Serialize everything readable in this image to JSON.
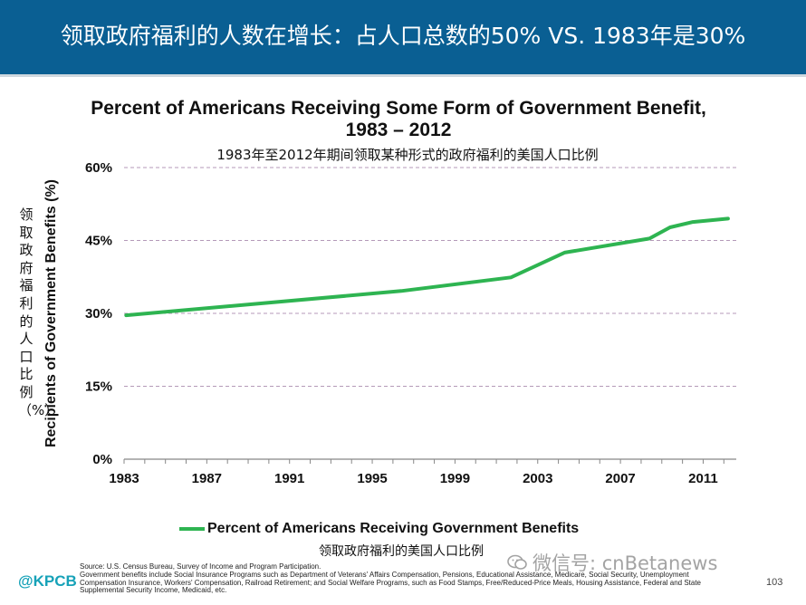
{
  "slide": {
    "title": "领取政府福利的人数在增长：占人口总数的50% VS. 1983年是30%",
    "brand": "@KPCB",
    "page_number": "103",
    "watermark": "微信号: cnBetanews",
    "source_lines": [
      "Source: U.S. Census Bureau, Survey of Income and Program Participation.",
      "Government benefits include Social Insurance Programs such as Department of Veterans' Affairs Compensation, Pensions, Educational Assistance, Medicare, Social Security, Unemployment",
      "Compensation Insurance, Workers' Compensation, Railroad Retirement; and Social Welfare Programs, such as Food Stamps, Free/Reduced-Price Meals, Housing Assistance, Federal and State",
      "Supplemental Security Income, Medicaid, etc."
    ]
  },
  "chart_data": {
    "type": "line",
    "title": "Percent of Americans Receiving Some Form of Government Benefit, 1983 – 2012",
    "subtitle": "1983年至2012年期间领取某种形式的政府福利的美国人口比例",
    "xlabel": "",
    "ylabel": "Recipients of Government Benefits (%)",
    "ylabel_zh": "领取政府福利的人口比例（%）",
    "xlim": [
      1983,
      2012.6
    ],
    "ylim": [
      0,
      60
    ],
    "xticks": [
      "1983",
      "1987",
      "1991",
      "1995",
      "1999",
      "2003",
      "2007",
      "2011"
    ],
    "xtick_values": [
      1983,
      1987,
      1991,
      1995,
      1999,
      2003,
      2007,
      2011
    ],
    "yticks": [
      "0%",
      "15%",
      "30%",
      "45%",
      "60%"
    ],
    "ytick_values": [
      0,
      15,
      30,
      45,
      60
    ],
    "grid": "horizontal dashed",
    "color": "#2eb451",
    "series": [
      {
        "name": "Percent of Americans Receiving Government Benefits",
        "name_zh": "领取政府福利的美国人口比例",
        "x": [
          1983.1,
          1996.4,
          2001.7,
          2004.3,
          2008.4,
          2009.4,
          2010.5,
          2012.2
        ],
        "values": [
          29.6,
          34.6,
          37.4,
          42.5,
          45.4,
          47.7,
          48.8,
          49.5
        ]
      }
    ]
  }
}
